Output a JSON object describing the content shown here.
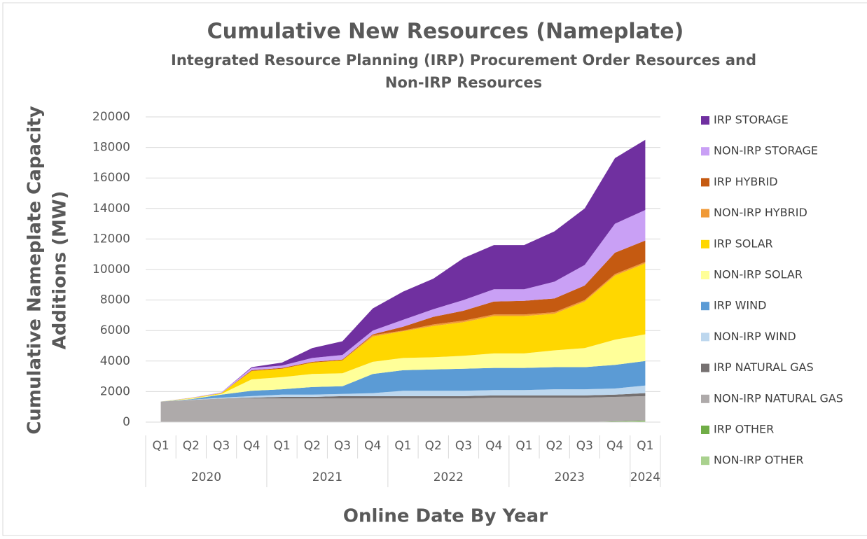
{
  "chart_data": {
    "type": "stacked_area",
    "title": "Cumulative New Resources (Nameplate)",
    "subtitle": [
      "Integrated Resource Planning (IRP) Procurement Order Resources and",
      "Non-IRP Resources"
    ],
    "y_label": [
      "Cumulative Nameplate Capacity",
      "Additions (MW)"
    ],
    "x_label": "Online Date By Year",
    "categories": [
      "Q1",
      "Q2",
      "Q3",
      "Q4",
      "Q1",
      "Q2",
      "Q3",
      "Q4",
      "Q1",
      "Q2",
      "Q3",
      "Q4",
      "Q1",
      "Q2",
      "Q3",
      "Q4",
      "Q1"
    ],
    "year_groups": [
      {
        "label": "2020",
        "quarters": 4
      },
      {
        "label": "2021",
        "quarters": 4
      },
      {
        "label": "2022",
        "quarters": 4
      },
      {
        "label": "2023",
        "quarters": 4
      },
      {
        "label": "2024",
        "quarters": 1
      }
    ],
    "ylim": [
      0,
      20000
    ],
    "yticks": [
      0,
      2000,
      4000,
      6000,
      8000,
      10000,
      12000,
      14000,
      16000,
      18000,
      20000
    ],
    "grid": true,
    "legend": "right",
    "series": [
      {
        "name": "IRP STORAGE",
        "color": "#7030a0",
        "values": [
          0,
          0,
          0,
          50,
          200,
          650,
          900,
          1450,
          1850,
          2000,
          2750,
          2900,
          2900,
          3300,
          3700,
          4300,
          4600
        ]
      },
      {
        "name": "NON-IRP STORAGE",
        "color": "#c9a0f5",
        "values": [
          0,
          20,
          50,
          150,
          150,
          250,
          300,
          250,
          450,
          500,
          700,
          800,
          750,
          1100,
          1350,
          1900,
          2000
        ]
      },
      {
        "name": "IRP HYBRID",
        "color": "#c55a11",
        "values": [
          0,
          0,
          0,
          50,
          50,
          50,
          50,
          50,
          250,
          500,
          650,
          850,
          900,
          900,
          950,
          1400,
          1400
        ]
      },
      {
        "name": "NON-IRP HYBRID",
        "color": "#f09a38",
        "values": [
          0,
          0,
          0,
          0,
          0,
          0,
          0,
          100,
          50,
          100,
          100,
          100,
          100,
          100,
          100,
          100,
          100
        ]
      },
      {
        "name": "IRP SOLAR",
        "color": "#ffd700",
        "values": [
          0,
          30,
          50,
          550,
          550,
          750,
          850,
          1650,
          1750,
          2050,
          2200,
          2450,
          2450,
          2400,
          3050,
          4200,
          4650
        ]
      },
      {
        "name": "NON-IRP SOLAR",
        "color": "#ffff99",
        "values": [
          0,
          50,
          50,
          750,
          800,
          850,
          850,
          800,
          800,
          800,
          850,
          950,
          950,
          1100,
          1250,
          1650,
          1750
        ]
      },
      {
        "name": "IRP WIND",
        "color": "#5b9bd5",
        "values": [
          0,
          30,
          200,
          350,
          350,
          500,
          500,
          1250,
          1350,
          1400,
          1450,
          1450,
          1450,
          1450,
          1450,
          1550,
          1600
        ]
      },
      {
        "name": "NON-IRP WIND",
        "color": "#bdd7ee",
        "values": [
          0,
          20,
          50,
          100,
          150,
          150,
          150,
          200,
          350,
          350,
          350,
          350,
          350,
          400,
          400,
          400,
          500
        ]
      },
      {
        "name": "IRP NATURAL GAS",
        "color": "#767171",
        "values": [
          0,
          0,
          0,
          50,
          100,
          100,
          150,
          150,
          150,
          150,
          150,
          150,
          150,
          150,
          150,
          150,
          200
        ]
      },
      {
        "name": "NON-IRP NATURAL GAS",
        "color": "#aeaaaa",
        "values": [
          1350,
          1450,
          1550,
          1550,
          1550,
          1550,
          1550,
          1550,
          1550,
          1550,
          1550,
          1600,
          1600,
          1600,
          1600,
          1600,
          1600
        ]
      },
      {
        "name": "IRP OTHER",
        "color": "#70ad47",
        "values": [
          0,
          0,
          0,
          0,
          0,
          0,
          0,
          0,
          0,
          0,
          0,
          0,
          0,
          0,
          0,
          25,
          50
        ]
      },
      {
        "name": "NON-IRP OTHER",
        "color": "#a9d18e",
        "values": [
          0,
          0,
          0,
          0,
          0,
          0,
          0,
          0,
          0,
          0,
          0,
          0,
          0,
          0,
          0,
          25,
          50
        ]
      }
    ]
  }
}
